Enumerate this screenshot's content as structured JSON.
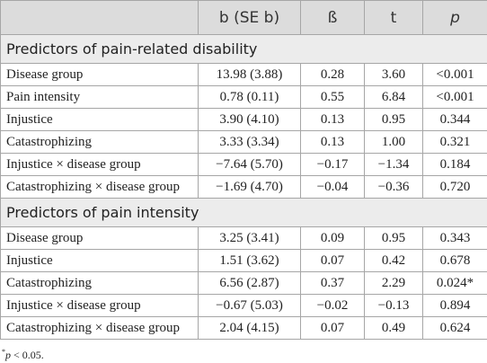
{
  "table": {
    "header": [
      "b (SE b)",
      "ß",
      "t",
      "p"
    ],
    "sections": [
      {
        "title": "Predictors of pain-related disability",
        "rows": [
          [
            "Disease group",
            "13.98 (3.88)",
            "0.28",
            "3.60",
            "<0.001"
          ],
          [
            "Pain intensity",
            "0.78 (0.11)",
            "0.55",
            "6.84",
            "<0.001"
          ],
          [
            "Injustice",
            "3.90 (4.10)",
            "0.13",
            "0.95",
            "0.344"
          ],
          [
            "Catastrophizing",
            "3.33 (3.34)",
            "0.13",
            "1.00",
            "0.321"
          ],
          [
            "Injustice × disease group",
            "−7.64 (5.70)",
            "−0.17",
            "−1.34",
            "0.184"
          ],
          [
            "Catastrophizing × disease group",
            "−1.69 (4.70)",
            "−0.04",
            "−0.36",
            "0.720"
          ]
        ]
      },
      {
        "title": "Predictors of pain intensity",
        "rows": [
          [
            "Disease group",
            "3.25 (3.41)",
            "0.09",
            "0.95",
            "0.343"
          ],
          [
            "Injustice",
            "1.51 (3.62)",
            "0.07",
            "0.42",
            "0.678"
          ],
          [
            "Catastrophizing",
            "6.56 (2.87)",
            "0.37",
            "2.29",
            "0.024*"
          ],
          [
            "Injustice × disease group",
            "−0.67 (5.03)",
            "−0.02",
            "−0.13",
            "0.894"
          ],
          [
            "Catastrophizing × disease group",
            "2.04 (4.15)",
            "0.07",
            "0.49",
            "0.624"
          ]
        ]
      }
    ],
    "footnote": {
      "marker": "*",
      "symbol": "p",
      "text": " < 0.05."
    }
  }
}
